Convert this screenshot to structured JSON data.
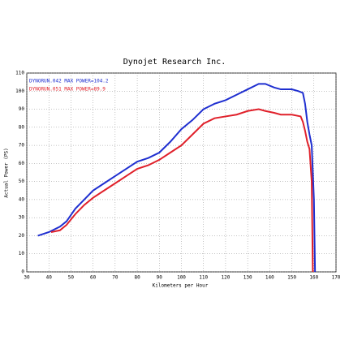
{
  "chart_data": {
    "type": "line",
    "title": "Dynojet Research Inc.",
    "xlabel": "Kilometers per Hour",
    "ylabel": "Actual Power (PS)",
    "xlim": [
      30,
      170
    ],
    "ylim": [
      0,
      110
    ],
    "xticks": [
      30,
      40,
      50,
      60,
      70,
      80,
      90,
      100,
      110,
      120,
      130,
      140,
      150,
      160,
      170
    ],
    "yticks": [
      0,
      10,
      20,
      30,
      40,
      50,
      60,
      70,
      80,
      90,
      100,
      110
    ],
    "grid": true,
    "series": [
      {
        "name": "DYNORUN.042  MAX POWER=104.2",
        "color": "#1f2fd0",
        "x": [
          35,
          40,
          45,
          48,
          52,
          56,
          60,
          65,
          70,
          75,
          80,
          85,
          90,
          95,
          100,
          105,
          110,
          115,
          120,
          125,
          130,
          135,
          138,
          142,
          145,
          150,
          153,
          155,
          156,
          157,
          158,
          159,
          160,
          160.5
        ],
        "values": [
          20,
          22,
          25,
          28,
          35,
          40,
          45,
          49,
          53,
          57,
          61,
          63,
          66,
          72,
          79,
          84,
          90,
          93,
          95,
          98,
          101,
          104,
          104,
          102,
          101,
          101,
          100,
          99,
          93,
          83,
          76,
          70,
          40,
          0
        ]
      },
      {
        "name": "DYNORUN.051  MAX POWER=89.9",
        "color": "#e0202a",
        "x": [
          41,
          45,
          48,
          52,
          56,
          60,
          65,
          70,
          75,
          80,
          85,
          90,
          95,
          100,
          105,
          110,
          115,
          120,
          125,
          130,
          135,
          138,
          142,
          145,
          150,
          154,
          155,
          156,
          157,
          158,
          159,
          159.5
        ],
        "values": [
          22,
          23,
          26,
          32,
          37,
          41,
          45,
          49,
          53,
          57,
          59,
          62,
          66,
          70,
          76,
          82,
          85,
          86,
          87,
          89,
          90,
          89,
          88,
          87,
          87,
          86,
          83,
          78,
          72,
          68,
          50,
          0
        ]
      }
    ]
  }
}
